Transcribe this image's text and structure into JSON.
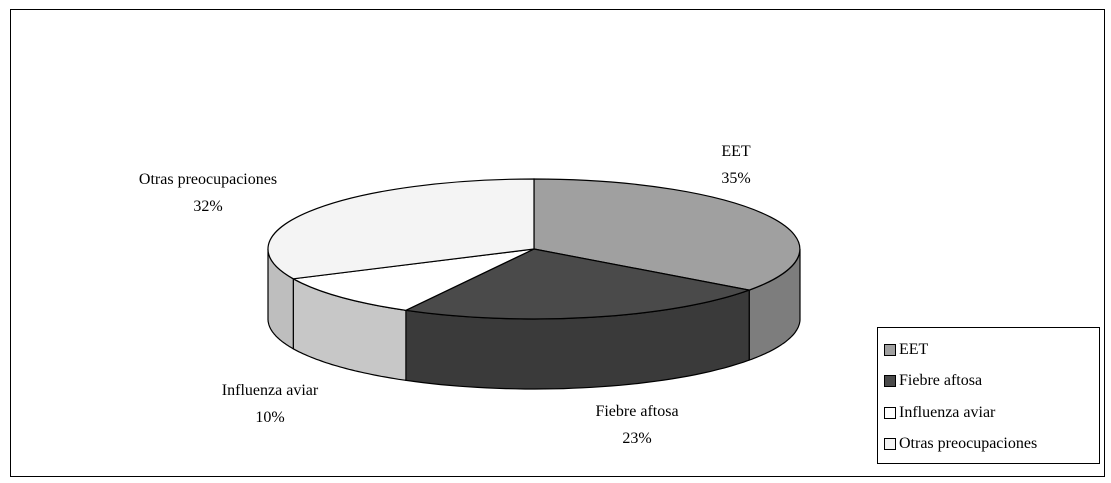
{
  "chart_data": {
    "type": "pie",
    "style": "3d",
    "categories": [
      "EET",
      "Fiebre aftosa",
      "Influenza aviar",
      "Otras preocupaciones"
    ],
    "values": [
      35,
      23,
      10,
      32
    ],
    "value_format": "percent",
    "data_labels": [
      {
        "name": "EET",
        "value": "35%"
      },
      {
        "name": "Fiebre aftosa",
        "value": "23%"
      },
      {
        "name": "Influenza aviar",
        "value": "10%"
      },
      {
        "name": "Otras preocupaciones",
        "value": "32%"
      }
    ],
    "colors": {
      "EET": "#a0a0a0",
      "Fiebre aftosa": "#4a4a4a",
      "Influenza aviar": "#ffffff",
      "Otras preocupaciones": "#f4f4f4"
    },
    "legend_placement": "bottom-right",
    "title": ""
  },
  "legend": {
    "items": [
      {
        "label": "EET",
        "color": "#a0a0a0"
      },
      {
        "label": "Fiebre aftosa",
        "color": "#4a4a4a"
      },
      {
        "label": "Influenza aviar",
        "color": "#ffffff"
      },
      {
        "label": "Otras preocupaciones",
        "color": "#f4f4f4"
      }
    ]
  }
}
